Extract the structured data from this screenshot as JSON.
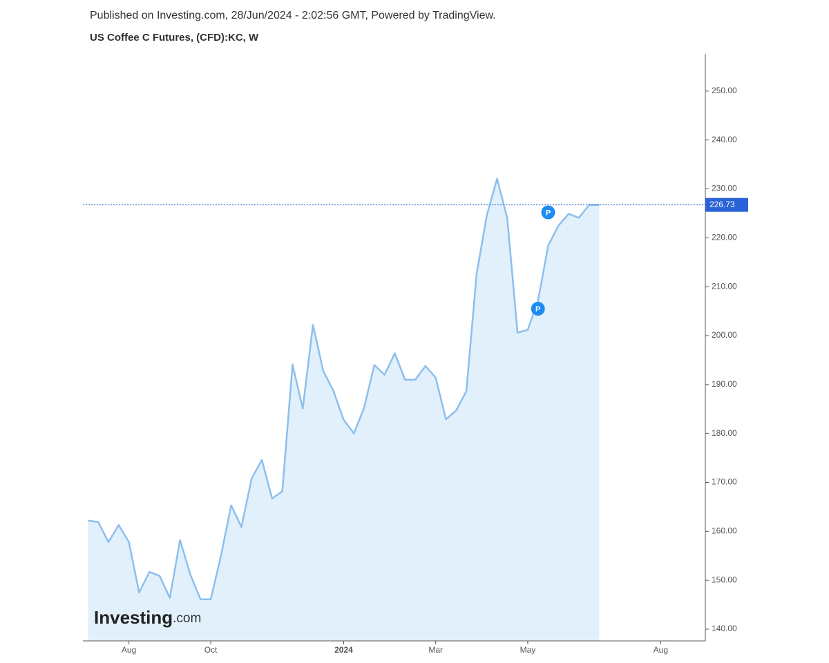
{
  "header": {
    "published": "Published on Investing.com, 28/Jun/2024 - 2:02:56 GMT, Powered by TradingView.",
    "logo": {
      "brand": "Investing",
      "suffix": ".com"
    }
  },
  "chart_data": {
    "type": "area",
    "title": "US Coffee C Futures, (CFD):KC, W",
    "x": [
      0,
      1,
      2,
      3,
      4,
      5,
      6,
      7,
      8,
      9,
      10,
      11,
      12,
      13,
      14,
      15,
      16,
      17,
      18,
      19,
      20,
      21,
      22,
      23,
      24,
      25,
      26,
      27,
      28,
      29,
      30,
      31,
      32,
      33,
      34,
      35,
      36,
      37,
      38,
      39,
      40,
      41,
      42,
      43,
      44,
      45,
      46,
      47,
      48,
      49,
      50
    ],
    "values": [
      162.2,
      161.9,
      157.8,
      161.3,
      157.8,
      147.5,
      151.7,
      150.9,
      146.4,
      158.2,
      151.2,
      146.1,
      146.1,
      155.0,
      165.3,
      160.9,
      170.8,
      174.6,
      166.7,
      168.2,
      194.1,
      185.1,
      202.2,
      192.8,
      188.7,
      182.8,
      180.0,
      185.3,
      194.0,
      192.0,
      196.4,
      191.0,
      191.0,
      193.8,
      191.4,
      182.9,
      184.7,
      188.7,
      212.6,
      224.6,
      232.1,
      224.0,
      200.6,
      201.2,
      207.1,
      218.4,
      222.5,
      224.9,
      224.1,
      226.7,
      226.73
    ],
    "color": "#8cbfee",
    "fill": "#e1f0fa",
    "xlim": [
      -0.5,
      60.3
    ],
    "xticks": [
      {
        "value": 4,
        "label": "Aug"
      },
      {
        "value": 12,
        "label": "Oct"
      },
      {
        "value": 25,
        "label": "2024"
      },
      {
        "value": 34,
        "label": "Mar"
      },
      {
        "value": 43,
        "label": "May"
      },
      {
        "value": 56,
        "label": "Aug"
      }
    ],
    "ylim": [
      137.6,
      257.6
    ],
    "yticks": [
      {
        "value": 140,
        "label": "140.00"
      },
      {
        "value": 150,
        "label": "150.00"
      },
      {
        "value": 160,
        "label": "160.00"
      },
      {
        "value": 170,
        "label": "170.00"
      },
      {
        "value": 180,
        "label": "180.00"
      },
      {
        "value": 190,
        "label": "190.00"
      },
      {
        "value": 200,
        "label": "200.00"
      },
      {
        "value": 210,
        "label": "210.00"
      },
      {
        "value": 220,
        "label": "220.00"
      },
      {
        "value": 230,
        "label": "230.00"
      },
      {
        "value": 240,
        "label": "240.00"
      },
      {
        "value": 250,
        "label": "250.00"
      }
    ],
    "last_price": 226.73,
    "last_price_color": "#2a62d8",
    "markers": [
      {
        "text": "P",
        "x": 45,
        "y": 225.2
      },
      {
        "text": "P",
        "x": 44,
        "y": 205.5
      }
    ],
    "marker_color": "#1e8cf0"
  }
}
